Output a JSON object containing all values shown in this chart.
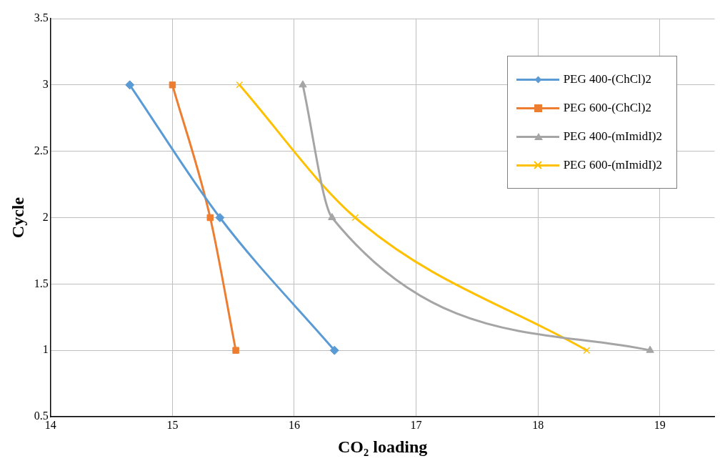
{
  "chart_data": {
    "type": "line",
    "xlabel": "CO₂ loading",
    "ylabel": "Cycle",
    "xlim": [
      14,
      19.45
    ],
    "xticks": [
      14,
      15,
      16,
      17,
      18,
      19
    ],
    "ylim": [
      0.5,
      3.5
    ],
    "yticks": [
      0.5,
      1,
      1.5,
      2,
      2.5,
      3,
      3.5
    ],
    "grid": true,
    "legend": "top right",
    "series": [
      {
        "name": "PEG 400-(ChCl)2",
        "color": "#5b9bd5",
        "marker": "diamond",
        "x": [
          14.65,
          15.39,
          16.33
        ],
        "values": [
          3,
          2,
          1
        ]
      },
      {
        "name": "PEG 600-(ChCl)2",
        "color": "#ed7d31",
        "marker": "square",
        "x": [
          15.0,
          15.31,
          15.52
        ],
        "values": [
          3,
          2,
          1
        ]
      },
      {
        "name": "PEG 400-(mImidI)2",
        "color": "#a5a5a5",
        "marker": "triangle",
        "x": [
          16.07,
          16.31,
          18.92
        ],
        "values": [
          3,
          2,
          1
        ]
      },
      {
        "name": "PEG 600-(mImidI)2",
        "color": "#ffc000",
        "marker": "cross",
        "x": [
          15.55,
          16.5,
          18.4
        ],
        "values": [
          3,
          2,
          1
        ]
      }
    ]
  }
}
